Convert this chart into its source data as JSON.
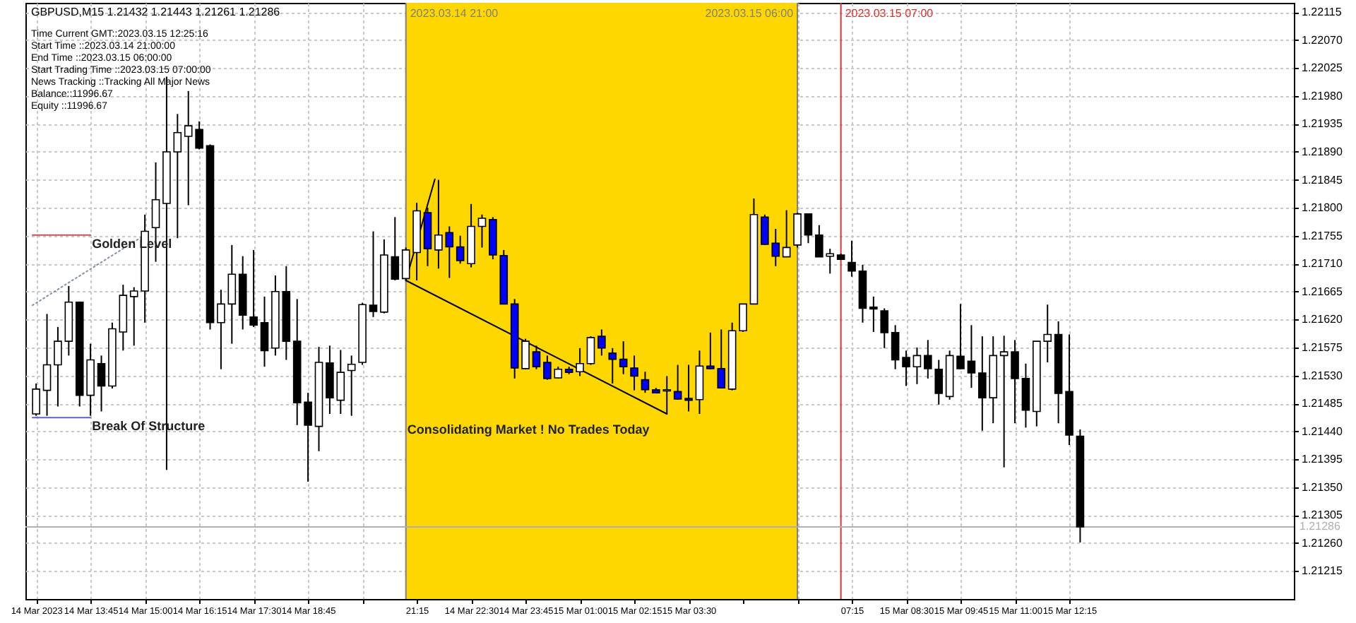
{
  "chart_data": {
    "type": "candlestick",
    "title": "GBPUSD,M15  1.21432 1.21443 1.21261 1.21286",
    "annotations": [
      "Time Current GMT::2023.03.15 12:25:16",
      "Start Time ::2023.03.14 21:00:00",
      "End Time ::2023.03.15 06:00:00",
      "Start Trading Time ::2023.03.15 07:00:00",
      "News Tracking ::Tracking All Major News",
      "Balance::11996.67",
      "Equity ::11996.67",
      {
        "text": "Golden Level",
        "x": "2023-03-14T13:45",
        "y": 1.21756
      },
      {
        "text": "Break Of Structure",
        "x": "2023-03-14T13:45",
        "y": 1.21462
      },
      {
        "text": "Consolidating Market ! No Trades Today",
        "x": "2023-03-14T21:00",
        "y": 1.21457
      }
    ],
    "x": [
      "2023-03-14T12:30",
      "2023-03-14T12:45",
      "2023-03-14T13:00",
      "2023-03-14T13:15",
      "2023-03-14T13:30",
      "2023-03-14T13:45",
      "2023-03-14T14:00",
      "2023-03-14T14:15",
      "2023-03-14T14:30",
      "2023-03-14T14:45",
      "2023-03-14T15:00",
      "2023-03-14T15:15",
      "2023-03-14T15:30",
      "2023-03-14T15:45",
      "2023-03-14T16:00",
      "2023-03-14T16:15",
      "2023-03-14T16:30",
      "2023-03-14T16:45",
      "2023-03-14T17:00",
      "2023-03-14T17:15",
      "2023-03-14T17:30",
      "2023-03-14T17:45",
      "2023-03-14T18:00",
      "2023-03-14T18:15",
      "2023-03-14T18:30",
      "2023-03-14T18:45",
      "2023-03-14T19:00",
      "2023-03-14T19:15",
      "2023-03-14T19:30",
      "2023-03-14T19:45",
      "2023-03-14T20:00",
      "2023-03-14T20:15",
      "2023-03-14T20:30",
      "2023-03-14T20:45",
      "2023-03-14T21:00",
      "2023-03-14T21:15",
      "2023-03-14T21:30",
      "2023-03-14T21:45",
      "2023-03-14T22:00",
      "2023-03-14T22:15",
      "2023-03-14T22:30",
      "2023-03-14T22:45",
      "2023-03-14T23:00",
      "2023-03-14T23:15",
      "2023-03-14T23:30",
      "2023-03-14T23:45",
      "2023-03-15T00:00",
      "2023-03-15T00:15",
      "2023-03-15T00:30",
      "2023-03-15T00:45",
      "2023-03-15T01:00",
      "2023-03-15T01:15",
      "2023-03-15T01:30",
      "2023-03-15T01:45",
      "2023-03-15T02:00",
      "2023-03-15T02:15",
      "2023-03-15T02:30",
      "2023-03-15T02:45",
      "2023-03-15T03:00",
      "2023-03-15T03:15",
      "2023-03-15T03:30",
      "2023-03-15T03:45",
      "2023-03-15T04:00",
      "2023-03-15T04:15",
      "2023-03-15T04:30",
      "2023-03-15T04:45",
      "2023-03-15T05:00",
      "2023-03-15T05:15",
      "2023-03-15T05:30",
      "2023-03-15T05:45",
      "2023-03-15T06:00",
      "2023-03-15T06:15",
      "2023-03-15T06:30",
      "2023-03-15T06:45",
      "2023-03-15T07:00",
      "2023-03-15T07:15",
      "2023-03-15T07:30",
      "2023-03-15T07:45",
      "2023-03-15T08:00",
      "2023-03-15T08:15",
      "2023-03-15T08:30",
      "2023-03-15T08:45",
      "2023-03-15T09:00",
      "2023-03-15T09:15",
      "2023-03-15T09:30",
      "2023-03-15T09:45",
      "2023-03-15T10:00",
      "2023-03-15T10:15",
      "2023-03-15T10:30",
      "2023-03-15T10:45",
      "2023-03-15T11:00",
      "2023-03-15T11:15",
      "2023-03-15T11:30",
      "2023-03-15T11:45",
      "2023-03-15T12:00",
      "2023-03-15T12:15",
      "2023-03-15T12:30"
    ],
    "ohlc": [
      [
        1.21468,
        1.21517,
        1.21465,
        1.21508
      ],
      [
        1.21506,
        1.21629,
        1.21465,
        1.21547
      ],
      [
        1.21547,
        1.21608,
        1.2148,
        1.21585
      ],
      [
        1.21585,
        1.21674,
        1.21562,
        1.21648
      ],
      [
        1.21648,
        1.21649,
        1.2148,
        1.21498
      ],
      [
        1.21498,
        1.21581,
        1.21465,
        1.21555
      ],
      [
        1.21549,
        1.21562,
        1.21472,
        1.21513
      ],
      [
        1.21513,
        1.21615,
        1.21509,
        1.21605
      ],
      [
        1.216,
        1.21676,
        1.2157,
        1.21659
      ],
      [
        1.21657,
        1.21672,
        1.21578,
        1.21666
      ],
      [
        1.21666,
        1.21789,
        1.21615,
        1.21762
      ],
      [
        1.21768,
        1.21873,
        1.21713,
        1.21813
      ],
      [
        1.21807,
        1.22011,
        1.21378,
        1.2189
      ],
      [
        1.2189,
        1.21951,
        1.21751,
        1.21921
      ],
      [
        1.21915,
        1.21988,
        1.21804,
        1.21932
      ],
      [
        1.21926,
        1.21939,
        1.21894,
        1.21896
      ],
      [
        1.219,
        1.21902,
        1.21604,
        1.21615
      ],
      [
        1.21615,
        1.21668,
        1.2154,
        1.21645
      ],
      [
        1.21645,
        1.2174,
        1.21581,
        1.21693
      ],
      [
        1.21693,
        1.21722,
        1.21604,
        1.21627
      ],
      [
        1.21624,
        1.21732,
        1.21608,
        1.21611
      ],
      [
        1.21615,
        1.21657,
        1.21544,
        1.2157
      ],
      [
        1.21574,
        1.21691,
        1.21562,
        1.21665
      ],
      [
        1.21665,
        1.21706,
        1.21555,
        1.21585
      ],
      [
        1.21585,
        1.21653,
        1.2145,
        1.21486
      ],
      [
        1.21487,
        1.21502,
        1.21359,
        1.2145
      ],
      [
        1.21448,
        1.21576,
        1.21408,
        1.21551
      ],
      [
        1.2155,
        1.21578,
        1.21468,
        1.21494
      ],
      [
        1.2149,
        1.21571,
        1.21468,
        1.21535
      ],
      [
        1.21538,
        1.21562,
        1.21465,
        1.21548
      ],
      [
        1.21551,
        1.21647,
        1.21547,
        1.21644
      ],
      [
        1.21643,
        1.21762,
        1.21624,
        1.21633
      ],
      [
        1.21632,
        1.21749,
        1.2163,
        1.21724
      ],
      [
        1.21721,
        1.21785,
        1.21683,
        1.21685
      ],
      [
        1.21686,
        1.21736,
        1.21683,
        1.21732
      ],
      [
        1.21728,
        1.21808,
        1.21683,
        1.21795
      ],
      [
        1.21792,
        1.218,
        1.21706,
        1.21734
      ],
      [
        1.21732,
        1.21845,
        1.21702,
        1.21756
      ],
      [
        1.2176,
        1.2177,
        1.21687,
        1.21737
      ],
      [
        1.21737,
        1.21755,
        1.2171,
        1.21715
      ],
      [
        1.2171,
        1.21806,
        1.21704,
        1.2177
      ],
      [
        1.2177,
        1.21789,
        1.21736,
        1.21783
      ],
      [
        1.21781,
        1.21785,
        1.21717,
        1.21724
      ],
      [
        1.21723,
        1.21732,
        1.21645,
        1.21645
      ],
      [
        1.21645,
        1.21653,
        1.21525,
        1.21542
      ],
      [
        1.21541,
        1.21589,
        1.2154,
        1.21585
      ],
      [
        1.21568,
        1.21578,
        1.2154,
        1.21544
      ],
      [
        1.21551,
        1.21562,
        1.21523,
        1.21525
      ],
      [
        1.21526,
        1.21544,
        1.21525,
        1.2154
      ],
      [
        1.2154,
        1.21544,
        1.21532,
        1.21535
      ],
      [
        1.21536,
        1.21574,
        1.21529,
        1.21549
      ],
      [
        1.21549,
        1.21593,
        1.21547,
        1.21591
      ],
      [
        1.21593,
        1.21604,
        1.21562,
        1.21574
      ],
      [
        1.21566,
        1.21574,
        1.21517,
        1.21556
      ],
      [
        1.21556,
        1.21585,
        1.21532,
        1.21544
      ],
      [
        1.21542,
        1.21562,
        1.21506,
        1.21529
      ],
      [
        1.21523,
        1.21536,
        1.21502,
        1.21507
      ],
      [
        1.21507,
        1.2151,
        1.21501,
        1.21502
      ],
      [
        1.21505,
        1.21529,
        1.21468,
        1.21507
      ],
      [
        1.21504,
        1.21547,
        1.21491,
        1.21492
      ],
      [
        1.21493,
        1.21547,
        1.21472,
        1.2149
      ],
      [
        1.21491,
        1.2157,
        1.21468,
        1.21545
      ],
      [
        1.21545,
        1.21599,
        1.2154,
        1.21541
      ],
      [
        1.21541,
        1.21604,
        1.2151,
        1.2151
      ],
      [
        1.21508,
        1.21615,
        1.21506,
        1.21602
      ],
      [
        1.21602,
        1.21645,
        1.216,
        1.21645
      ],
      [
        1.21645,
        1.21815,
        1.21645,
        1.21789
      ],
      [
        1.21785,
        1.21789,
        1.2174,
        1.21741
      ],
      [
        1.21743,
        1.21766,
        1.21706,
        1.21722
      ],
      [
        1.21721,
        1.21796,
        1.21721,
        1.21736
      ],
      [
        1.2174,
        1.21792,
        1.21736,
        1.2179
      ],
      [
        1.2179,
        1.21791,
        1.21743,
        1.21756
      ],
      [
        1.21756,
        1.21772,
        1.21721,
        1.21721
      ],
      [
        1.21722,
        1.21734,
        1.21694,
        1.21726
      ],
      [
        1.21724,
        1.21726,
        1.21717,
        1.21717
      ],
      [
        1.21712,
        1.21747,
        1.21689,
        1.21698
      ],
      [
        1.21698,
        1.21708,
        1.21615,
        1.21638
      ],
      [
        1.2164,
        1.21657,
        1.216,
        1.21637
      ],
      [
        1.21634,
        1.21638,
        1.21574,
        1.21599
      ],
      [
        1.21599,
        1.21611,
        1.2154,
        1.21555
      ],
      [
        1.21559,
        1.2157,
        1.21513,
        1.21544
      ],
      [
        1.21544,
        1.21575,
        1.21516,
        1.21562
      ],
      [
        1.21562,
        1.21587,
        1.21525,
        1.21541
      ],
      [
        1.2154,
        1.21555,
        1.21483,
        1.21501
      ],
      [
        1.21496,
        1.2157,
        1.21491,
        1.21562
      ],
      [
        1.21561,
        1.21645,
        1.2154,
        1.21541
      ],
      [
        1.21553,
        1.21611,
        1.2151,
        1.21534
      ],
      [
        1.21534,
        1.21593,
        1.21441,
        1.21494
      ],
      [
        1.21494,
        1.21593,
        1.21453,
        1.21562
      ],
      [
        1.21562,
        1.21594,
        1.21382,
        1.21568
      ],
      [
        1.21568,
        1.21587,
        1.21453,
        1.21525
      ],
      [
        1.21525,
        1.21549,
        1.21446,
        1.21474
      ],
      [
        1.21472,
        1.21585,
        1.21448,
        1.21585
      ],
      [
        1.21585,
        1.21644,
        1.21551,
        1.21596
      ],
      [
        1.21596,
        1.21617,
        1.21453,
        1.21501
      ],
      [
        1.21504,
        1.21596,
        1.21418,
        1.21434
      ],
      [
        1.21432,
        1.21443,
        1.21261,
        1.21286
      ]
    ],
    "colors": [
      "#ffffff",
      "#ffffff",
      "#ffffff",
      "#ffffff",
      "#000000",
      "#ffffff",
      "#000000",
      "#ffffff",
      "#ffffff",
      "#ffffff",
      "#ffffff",
      "#ffffff",
      "#ffffff",
      "#ffffff",
      "#ffffff",
      "#000000",
      "#000000",
      "#ffffff",
      "#ffffff",
      "#000000",
      "#000000",
      "#000000",
      "#ffffff",
      "#000000",
      "#000000",
      "#000000",
      "#ffffff",
      "#000000",
      "#ffffff",
      "#ffffff",
      "#ffffff",
      "#000000",
      "#ffffff",
      "#000000",
      "#ffffff",
      "#ffffff",
      "#0000ff",
      "#ffffff",
      "#0000ff",
      "#0000ff",
      "#ffffff",
      "#ffffff",
      "#0000ff",
      "#0000ff",
      "#0000ff",
      "#ffffff",
      "#0000ff",
      "#0000ff",
      "#ffffff",
      "#0000ff",
      "#ffffff",
      "#ffffff",
      "#0000ff",
      "#0000ff",
      "#0000ff",
      "#0000ff",
      "#0000ff",
      "#0000ff",
      "#ffffff",
      "#0000ff",
      "#0000ff",
      "#ffffff",
      "#0000ff",
      "#0000ff",
      "#ffffff",
      "#ffffff",
      "#ffffff",
      "#0000ff",
      "#0000ff",
      "#ffffff",
      "#ffffff",
      "#000000",
      "#000000",
      "#ffffff",
      "#000000",
      "#000000",
      "#000000",
      "#000000",
      "#000000",
      "#000000",
      "#000000",
      "#ffffff",
      "#000000",
      "#000000",
      "#ffffff",
      "#000000",
      "#000000",
      "#000000",
      "#ffffff",
      "#ffffff",
      "#000000",
      "#000000",
      "#ffffff",
      "#ffffff",
      "#000000",
      "#000000",
      "#000000"
    ],
    "series": [
      {
        "type": "line",
        "x": [
          "2023-03-14T12:25",
          "2023-03-14T13:45"
        ],
        "values": [
          1.21756,
          1.21756
        ],
        "color": "#c85050"
      },
      {
        "type": "line",
        "x": [
          "2023-03-14T12:25",
          "2023-03-14T13:45"
        ],
        "values": [
          1.21462,
          1.21462
        ],
        "color": "#6060c0"
      },
      {
        "type": "line",
        "x": [
          "2023-03-14T12:25",
          "2023-03-14T15:00"
        ],
        "values": [
          1.21643,
          1.21756
        ],
        "color": "#7f8fa6",
        "line_style": "dotted"
      },
      {
        "type": "line",
        "x": [
          "2023-03-14T21:00",
          "2023-03-14T21:40"
        ],
        "values": [
          1.21683,
          1.21846
        ],
        "color": "#000000"
      },
      {
        "type": "line",
        "x": [
          "2023-03-14T21:00",
          "2023-03-15T03:00"
        ],
        "values": [
          1.21683,
          1.21468
        ],
        "color": "#000000"
      }
    ],
    "bands": [
      {
        "axis": "x",
        "from": "2023-03-14T21:00",
        "to": "2023-03-15T06:00",
        "color": "#ffd700"
      }
    ],
    "ref_lines": [
      {
        "axis": "x",
        "value": "2023-03-14T21:00",
        "label": "2023.03.14 21:00",
        "color": "#808080"
      },
      {
        "axis": "x",
        "value": "2023-03-15T06:00",
        "label": "2023.03.15 06:00",
        "color": "#808080"
      },
      {
        "axis": "x",
        "value": "2023-03-15T07:00",
        "label": "2023.03.15 07:00",
        "color": "#e03030"
      },
      {
        "axis": "y",
        "value": 1.21286,
        "label": "1.21286",
        "color": "#b0b0b0"
      }
    ],
    "xlim": [
      "2023-03-14T12:25",
      "2023-03-15T17:15"
    ],
    "xticks": [
      {
        "value": "2023-03-14T12:30",
        "label": "14 Mar 2023"
      },
      {
        "value": "2023-03-14T13:45",
        "label": "14 Mar 13:45"
      },
      {
        "value": "2023-03-14T15:00",
        "label": "14 Mar 15:00"
      },
      {
        "value": "2023-03-14T16:15",
        "label": "14 Mar 16:15"
      },
      {
        "value": "2023-03-14T17:30",
        "label": "14 Mar 17:30"
      },
      {
        "value": "2023-03-14T18:45",
        "label": "14 Mar 18:45"
      },
      {
        "value": "2023-03-14T20:00",
        "label": null
      },
      {
        "value": "2023-03-14T21:15",
        "label": "21:15"
      },
      {
        "value": "2023-03-14T22:30",
        "label": "14 Mar 22:30"
      },
      {
        "value": "2023-03-14T23:45",
        "label": "14 Mar 23:45"
      },
      {
        "value": "2023-03-15T01:00",
        "label": "15 Mar 01:00"
      },
      {
        "value": "2023-03-15T02:15",
        "label": "15 Mar 02:15"
      },
      {
        "value": "2023-03-15T03:30",
        "label": "15 Mar 03:30"
      },
      {
        "value": "2023-03-15T04:45",
        "label": null
      },
      {
        "value": "2023-03-15T06:00",
        "label": null
      },
      {
        "value": "2023-03-15T07:15",
        "label": "07:15"
      },
      {
        "value": "2023-03-15T08:30",
        "label": "15 Mar 08:30"
      },
      {
        "value": "2023-03-15T09:45",
        "label": "15 Mar 09:45"
      },
      {
        "value": "2023-03-15T11:00",
        "label": "15 Mar 11:00"
      },
      {
        "value": "2023-03-15T12:15",
        "label": "15 Mar 12:15"
      }
    ],
    "ylim": [
      1.2117,
      1.2213
    ],
    "yticks": [
      1.22115,
      {
        "value": 1.2207,
        "label": "1.22070"
      },
      1.22025,
      {
        "value": 1.2198,
        "label": "1.21980"
      },
      1.21935,
      {
        "value": 1.2189,
        "label": "1.21890"
      },
      1.21845,
      {
        "value": 1.218,
        "label": "1.21800"
      },
      1.21755,
      {
        "value": 1.2171,
        "label": "1.21710"
      },
      1.21665,
      {
        "value": 1.2162,
        "label": "1.21620"
      },
      1.21575,
      {
        "value": 1.2153,
        "label": "1.21530"
      },
      1.21485,
      {
        "value": 1.2144,
        "label": "1.21440"
      },
      1.21395,
      {
        "value": 1.2135,
        "label": "1.21350"
      },
      1.21305,
      {
        "value": 1.2126,
        "label": "1.21260"
      },
      1.21215
    ],
    "grid": true
  }
}
